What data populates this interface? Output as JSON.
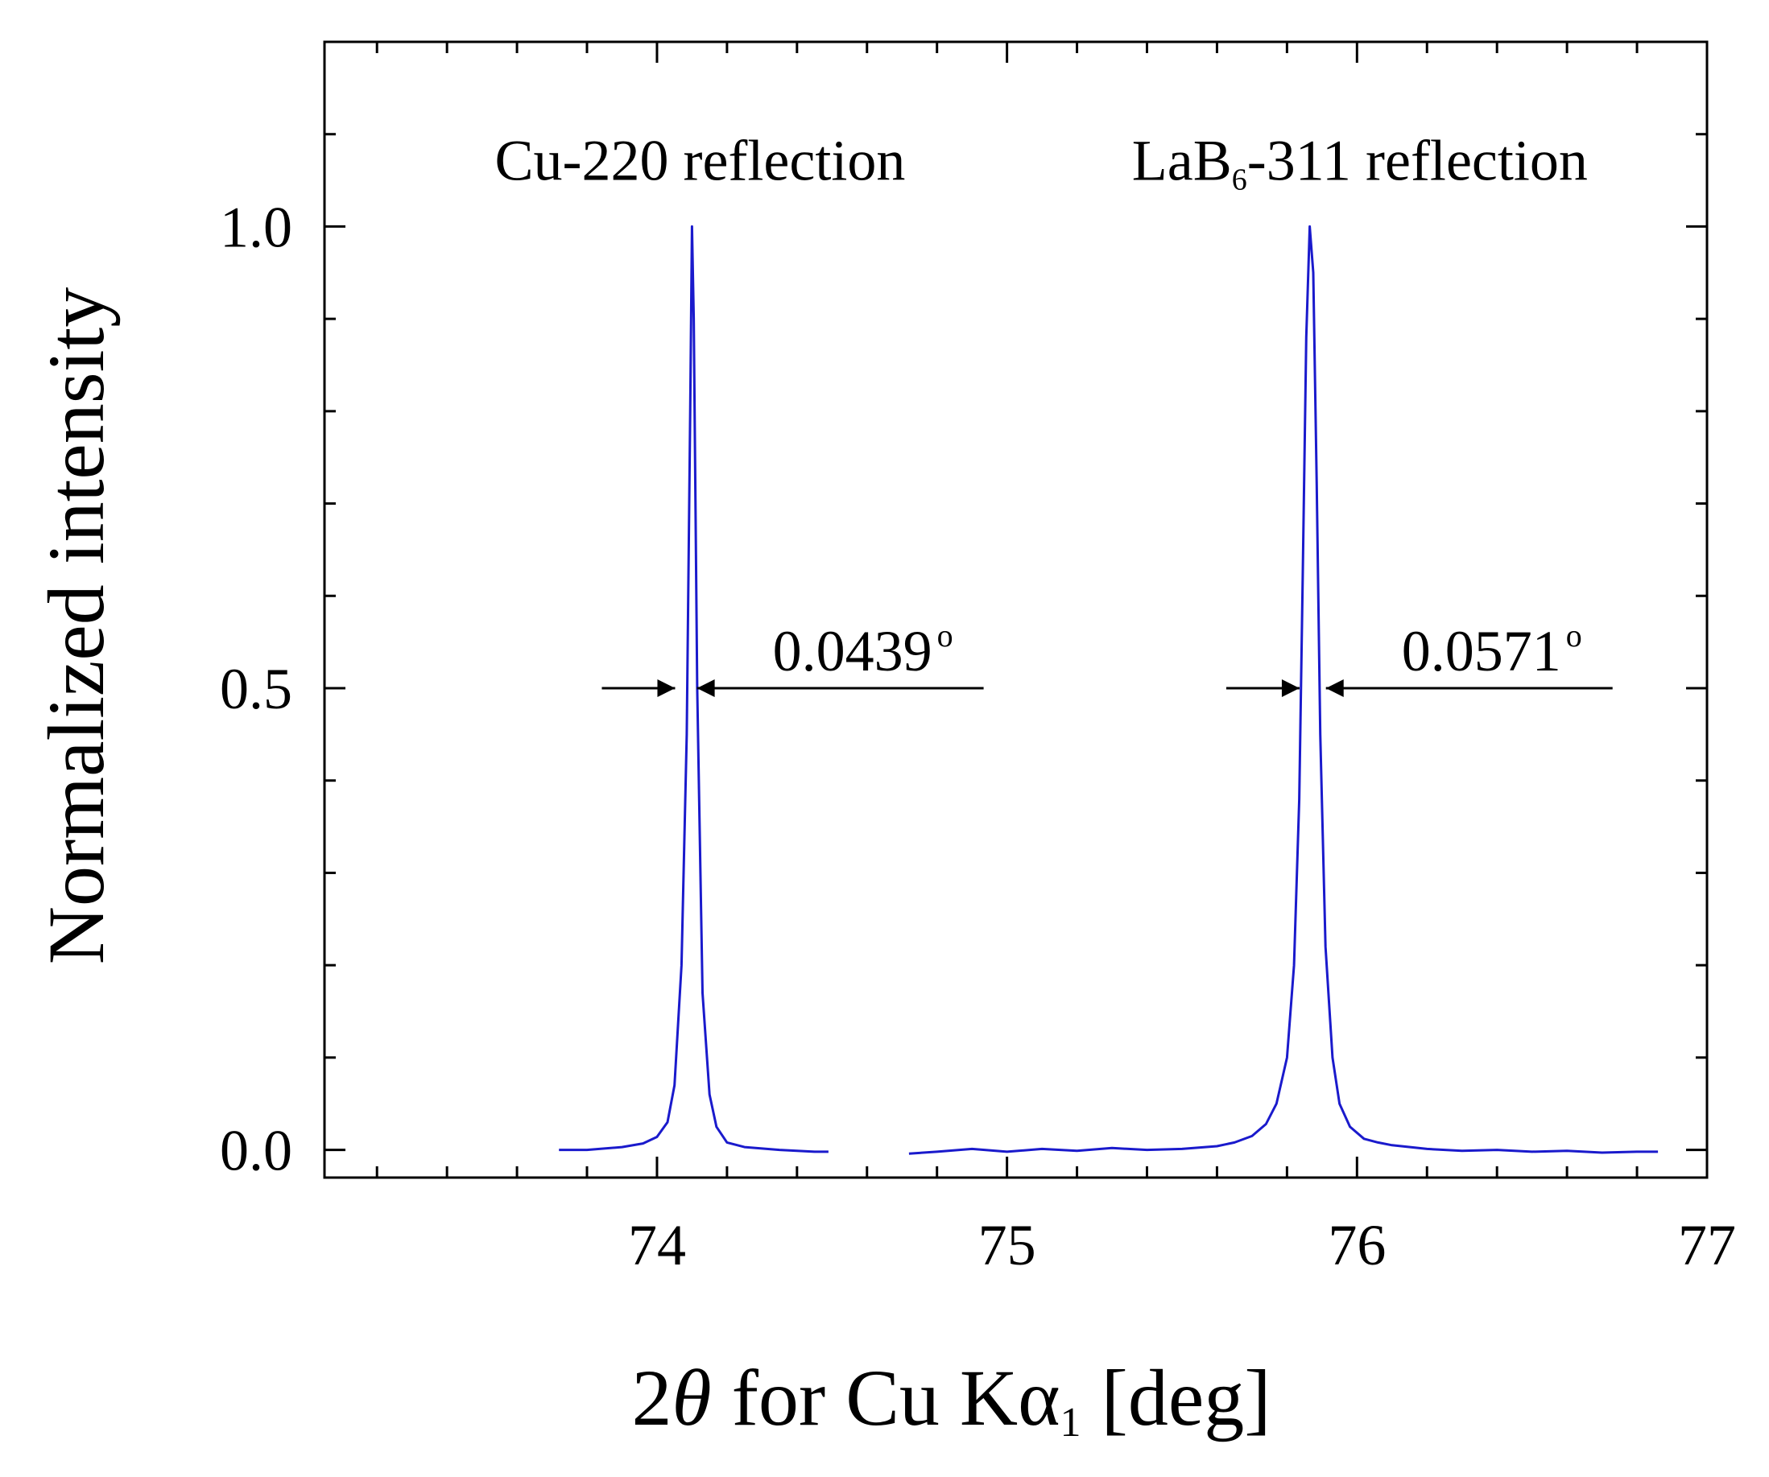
{
  "chart_data": {
    "type": "line",
    "title": "",
    "xlabel": {
      "prefix": "2",
      "symbol": "θ",
      "middle": " for Cu Kα",
      "subscript": "1",
      "suffix": " [deg]"
    },
    "ylabel": "Normalized intensity",
    "xlim": [
      73.05,
      77.0
    ],
    "ylim": [
      -0.03,
      1.2
    ],
    "x_ticks": [
      74,
      75,
      76,
      77
    ],
    "x_tick_labels": [
      "74",
      "75",
      "76",
      "77"
    ],
    "y_ticks": [
      0.0,
      0.5,
      1.0
    ],
    "y_tick_labels": [
      "0.0",
      "0.5",
      "1.0"
    ],
    "x_minor_step": 0.2,
    "y_minor_step": 0.1,
    "grid": false,
    "line_color": "#1a1acc",
    "series": [
      {
        "x": [
          73.72,
          73.8,
          73.9,
          73.96,
          74.0,
          74.03,
          74.05,
          74.07,
          74.085,
          74.095,
          74.1,
          74.105,
          74.115,
          74.13,
          74.15,
          74.17,
          74.2,
          74.25,
          74.35,
          74.45,
          74.49
        ],
        "y": [
          0.0,
          0.0,
          0.003,
          0.007,
          0.014,
          0.03,
          0.07,
          0.2,
          0.45,
          0.8,
          1.0,
          0.9,
          0.5,
          0.17,
          0.06,
          0.025,
          0.008,
          0.003,
          0.0,
          -0.002,
          -0.002
        ]
      },
      {
        "x": [
          74.72,
          74.8,
          74.9,
          75.0,
          75.1,
          75.2,
          75.3,
          75.4,
          75.5,
          75.6,
          75.65,
          75.7,
          75.74,
          75.77,
          75.8,
          75.82,
          75.835,
          75.845,
          75.855,
          75.865,
          75.875,
          75.885,
          75.895,
          75.91,
          75.93,
          75.95,
          75.98,
          76.02,
          76.06,
          76.1,
          76.2,
          76.3,
          76.4,
          76.5,
          76.6,
          76.7,
          76.8,
          76.86
        ],
        "y": [
          -0.004,
          -0.002,
          0.001,
          -0.002,
          0.001,
          -0.001,
          0.002,
          0.0,
          0.001,
          0.004,
          0.008,
          0.015,
          0.028,
          0.05,
          0.1,
          0.2,
          0.38,
          0.62,
          0.88,
          1.0,
          0.95,
          0.72,
          0.45,
          0.22,
          0.1,
          0.05,
          0.025,
          0.012,
          0.008,
          0.005,
          0.001,
          -0.001,
          0.0,
          -0.002,
          -0.001,
          -0.003,
          -0.002,
          -0.002
        ]
      }
    ],
    "annotations": {
      "peak1_label": "Cu-220 reflection",
      "peak2_label_pre": "LaB",
      "peak2_label_sub": "6",
      "peak2_label_post": "-311 reflection",
      "fwhm1_value": "0.0439",
      "fwhm2_value": "0.0571",
      "degree_mark": "o",
      "fwhm1_left_x": 74.061,
      "fwhm1_right_x": 74.105,
      "fwhm2_left_x": 75.845,
      "fwhm2_right_x": 75.902,
      "fwhm_y": 0.5
    }
  }
}
